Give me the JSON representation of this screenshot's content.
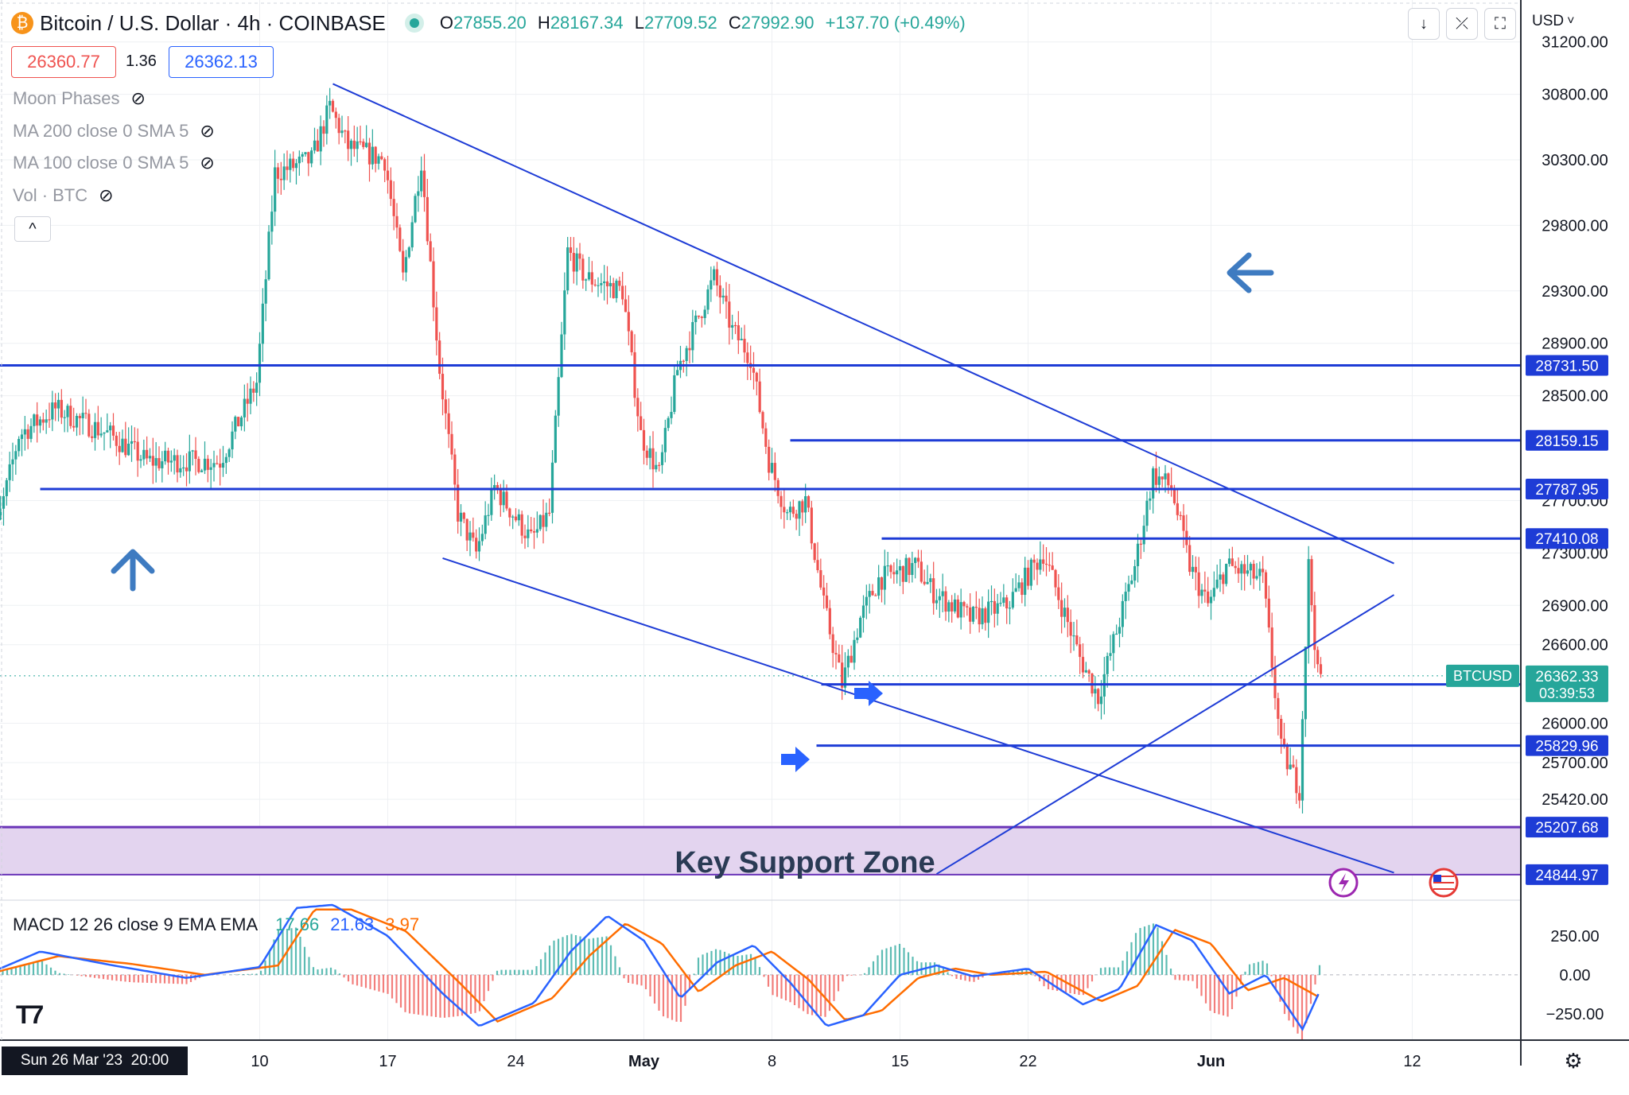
{
  "header": {
    "coin_symbol": "₿",
    "title": "Bitcoin / U.S. Dollar · 4h · COINBASE",
    "open_label": "O",
    "open": "27855.20",
    "high_label": "H",
    "high": "28167.34",
    "low_label": "L",
    "low": "27709.52",
    "close_label": "C",
    "close": "27992.90",
    "change": "+137.70 (+0.49%)",
    "bid": "26360.77",
    "spread": "1.36",
    "ask": "26362.13",
    "currency": "USD",
    "currency_caret": "˅"
  },
  "legend": {
    "items": [
      "Moon Phases",
      "MA 200 close 0 SMA 5",
      "MA 100 close 0 SMA 5",
      "Vol · BTC"
    ],
    "collapse": "^"
  },
  "toolbar": {
    "down_glyph": "↓",
    "collapse_glyph": "⤫",
    "fullscreen_glyph": "⛶"
  },
  "annotation": {
    "label": "Key Support Zone"
  },
  "icons": [
    "bitcoin-icon",
    "eye-hidden-icon",
    "arrow-up-icon",
    "arrow-left-icon",
    "arrow-right-icon",
    "lightning-icon",
    "us-flag-icon",
    "settings-icon",
    "logo-icon"
  ],
  "colors": {
    "up": "#26a69a",
    "down": "#ef5350",
    "lines": "#1e3cd6",
    "support_zone": "#e3d4ef",
    "macd": "#2962ff",
    "signal": "#ff6d00",
    "arrows": "#3e7bc1"
  },
  "chart_data": [
    {
      "type": "candlestick",
      "symbol": "BTCUSD",
      "interval": "4h",
      "exchange": "COINBASE",
      "x_ticks": [
        "10",
        "17",
        "24",
        "May",
        "8",
        "15",
        "22",
        "Jun",
        "12"
      ],
      "crosshair_date": "Sun 26 Mar '23  20:00",
      "y_ticks": [
        31200,
        30800,
        30300,
        29800,
        29300,
        28900,
        28500,
        27700,
        27300,
        26900,
        26600,
        26000,
        25700,
        25420
      ],
      "ylim": [
        24650,
        31520
      ],
      "last_price": {
        "symbol": "BTCUSD",
        "value": "26362.33",
        "countdown": "03:39:53"
      },
      "horizontal_levels": [
        {
          "value": 28731.5,
          "label": "28731.50"
        },
        {
          "value": 28159.15,
          "label": "28159.15"
        },
        {
          "value": 27787.95,
          "label": "27787.95"
        },
        {
          "value": 27410.08,
          "label": "27410.08"
        },
        {
          "value": 26297.14,
          "label": "26297.14"
        },
        {
          "value": 25829.96,
          "label": "25829.96"
        },
        {
          "value": 25207.68,
          "label": "25207.68"
        },
        {
          "value": 24844.97,
          "label": "24844.97"
        }
      ],
      "support_zone": [
        24844.97,
        25207.68
      ],
      "trendlines": [
        {
          "from": [
            "Apr 14",
            30880
          ],
          "to": [
            "Jun 11",
            27220
          ]
        },
        {
          "from": [
            "Apr 20",
            27260
          ],
          "to": [
            "Jun 11",
            24860
          ]
        },
        {
          "from": [
            "May 17",
            24850
          ],
          "to": [
            "Jun 11",
            26980
          ]
        }
      ],
      "candle_anchors": [
        [
          "Mar 26",
          27000
        ],
        [
          "Mar 28",
          28200
        ],
        [
          "Mar 30",
          28400
        ],
        [
          "Apr 2",
          28200
        ],
        [
          "Apr 4",
          28000
        ],
        [
          "Apr 6",
          28000
        ],
        [
          "Apr 8",
          28000
        ],
        [
          "Apr 10",
          28600
        ],
        [
          "Apr 11",
          30200
        ],
        [
          "Apr 13",
          30300
        ],
        [
          "Apr 14",
          30700
        ],
        [
          "Apr 15",
          30400
        ],
        [
          "Apr 17",
          30300
        ],
        [
          "Apr 18",
          29400
        ],
        [
          "Apr 19",
          30300
        ],
        [
          "Apr 20",
          28700
        ],
        [
          "Apr 21",
          27600
        ],
        [
          "Apr 22",
          27300
        ],
        [
          "Apr 23",
          27800
        ],
        [
          "Apr 25",
          27400
        ],
        [
          "Apr 26",
          27600
        ],
        [
          "Apr 27",
          29600
        ],
        [
          "Apr 28",
          29400
        ],
        [
          "Apr 30",
          29300
        ],
        [
          "May 1",
          28200
        ],
        [
          "May 2",
          27900
        ],
        [
          "May 3",
          28700
        ],
        [
          "May 5",
          29400
        ],
        [
          "May 6",
          29000
        ],
        [
          "May 7",
          28800
        ],
        [
          "May 8",
          28000
        ],
        [
          "May 9",
          27600
        ],
        [
          "May 10",
          27700
        ],
        [
          "May 11",
          26900
        ],
        [
          "May 12",
          26300
        ],
        [
          "May 13",
          26800
        ],
        [
          "May 14",
          27100
        ],
        [
          "May 16",
          27200
        ],
        [
          "May 17",
          27000
        ],
        [
          "May 19",
          26800
        ],
        [
          "May 21",
          26900
        ],
        [
          "May 22",
          27100
        ],
        [
          "May 23",
          27300
        ],
        [
          "May 25",
          26500
        ],
        [
          "May 26",
          26200
        ],
        [
          "May 27",
          26700
        ],
        [
          "May 28",
          27200
        ],
        [
          "May 29",
          27900
        ],
        [
          "May 30",
          27800
        ],
        [
          "May 31",
          27200
        ],
        [
          "Jun 1",
          26900
        ],
        [
          "Jun 2",
          27200
        ],
        [
          "Jun 4",
          27100
        ],
        [
          "Jun 5",
          25800
        ],
        [
          "Jun 6",
          25500
        ],
        [
          "Jun 6 12h",
          27200
        ],
        [
          "Jun 7",
          26362
        ]
      ]
    },
    {
      "type": "line",
      "title": "MACD 12 26 close 9 EMA EMA",
      "readout": {
        "histogram": "17.66",
        "macd": "21.63",
        "signal": "3.97"
      },
      "y_ticks": [
        250,
        0,
        -250
      ],
      "ylim": [
        -420,
        480
      ],
      "series": [
        {
          "name": "MACD",
          "anchors": [
            [
              "Mar 26",
              0
            ],
            [
              "Mar 29",
              150
            ],
            [
              "Apr 2",
              60
            ],
            [
              "Apr 6",
              -20
            ],
            [
              "Apr 10",
              50
            ],
            [
              "Apr 12",
              430
            ],
            [
              "Apr 14",
              450
            ],
            [
              "Apr 17",
              250
            ],
            [
              "Apr 20",
              -120
            ],
            [
              "Apr 22",
              -330
            ],
            [
              "Apr 25",
              -180
            ],
            [
              "Apr 27",
              150
            ],
            [
              "Apr 29",
              380
            ],
            [
              "May 1",
              220
            ],
            [
              "May 3",
              -150
            ],
            [
              "May 5",
              80
            ],
            [
              "May 7",
              190
            ],
            [
              "May 9",
              -50
            ],
            [
              "May 11",
              -330
            ],
            [
              "May 13",
              -260
            ],
            [
              "May 15",
              0
            ],
            [
              "May 17",
              60
            ],
            [
              "May 19",
              -10
            ],
            [
              "May 22",
              40
            ],
            [
              "May 25",
              -190
            ],
            [
              "May 27",
              -90
            ],
            [
              "May 29",
              320
            ],
            [
              "May 31",
              220
            ],
            [
              "Jun 2",
              -120
            ],
            [
              "Jun 4",
              0
            ],
            [
              "Jun 6",
              -350
            ],
            [
              "Jun 7",
              -90
            ]
          ]
        },
        {
          "name": "Signal",
          "anchors": [
            [
              "Mar 26",
              0
            ],
            [
              "Mar 30",
              120
            ],
            [
              "Apr 3",
              70
            ],
            [
              "Apr 7",
              0
            ],
            [
              "Apr 11",
              60
            ],
            [
              "Apr 13",
              420
            ],
            [
              "Apr 15",
              420
            ],
            [
              "Apr 18",
              280
            ],
            [
              "Apr 21",
              -60
            ],
            [
              "Apr 23",
              -300
            ],
            [
              "Apr 26",
              -150
            ],
            [
              "Apr 28",
              120
            ],
            [
              "Apr 30",
              330
            ],
            [
              "May 2",
              200
            ],
            [
              "May 4",
              -110
            ],
            [
              "May 6",
              60
            ],
            [
              "May 8",
              150
            ],
            [
              "May 10",
              -30
            ],
            [
              "May 12",
              -290
            ],
            [
              "May 14",
              -230
            ],
            [
              "May 16",
              -20
            ],
            [
              "May 18",
              40
            ],
            [
              "May 20",
              0
            ],
            [
              "May 23",
              20
            ],
            [
              "May 26",
              -170
            ],
            [
              "May 28",
              -70
            ],
            [
              "May 30",
              290
            ],
            [
              "Jun 1",
              200
            ],
            [
              "Jun 3",
              -100
            ],
            [
              "Jun 5",
              -20
            ],
            [
              "Jun 7",
              -150
            ]
          ]
        }
      ]
    }
  ]
}
